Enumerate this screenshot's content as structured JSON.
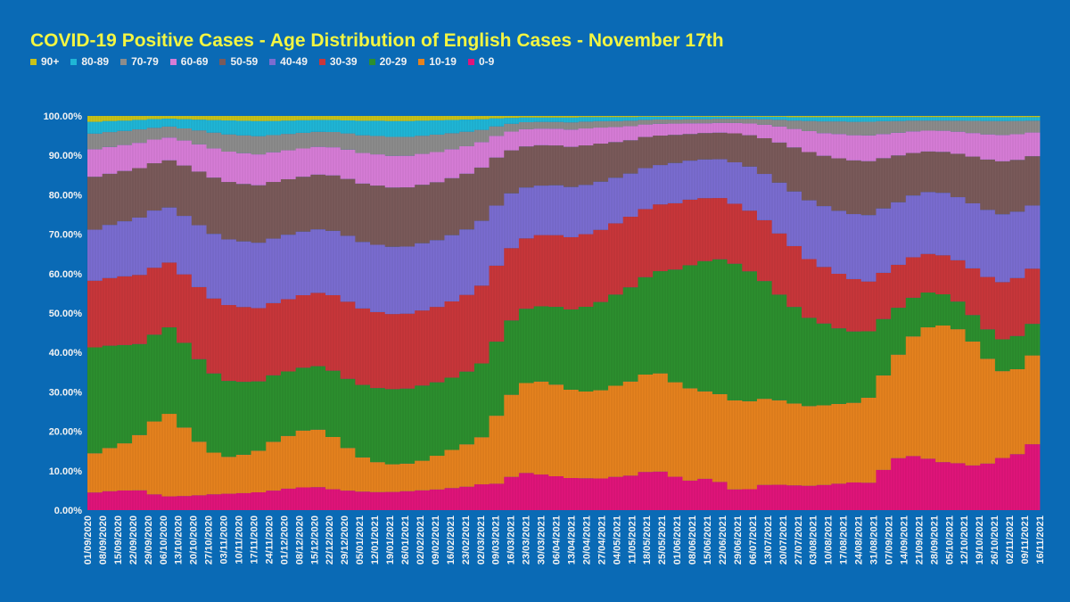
{
  "chart_data": {
    "type": "bar",
    "stacked": true,
    "normalized": true,
    "title": "COVID-19 Positive Cases - Age Distribution of English Cases - November 17th",
    "xlabel": "",
    "ylabel": "",
    "ylim": [
      0,
      100
    ],
    "y_ticks": [
      "0.00%",
      "10.00%",
      "20.00%",
      "30.00%",
      "40.00%",
      "50.00%",
      "60.00%",
      "70.00%",
      "80.00%",
      "90.00%",
      "100.00%"
    ],
    "x_ticks": [
      "01/09/2020",
      "08/09/2020",
      "15/09/2020",
      "22/09/2020",
      "29/09/2020",
      "06/10/2020",
      "13/10/2020",
      "20/10/2020",
      "27/10/2020",
      "03/11/2020",
      "10/11/2020",
      "17/11/2020",
      "24/11/2020",
      "01/12/2020",
      "08/12/2020",
      "15/12/2020",
      "22/12/2020",
      "29/12/2020",
      "05/01/2021",
      "12/01/2021",
      "19/01/2021",
      "26/01/2021",
      "02/02/2021",
      "09/02/2021",
      "16/02/2021",
      "23/02/2021",
      "02/03/2021",
      "09/03/2021",
      "16/03/2021",
      "23/03/2021",
      "30/03/2021",
      "06/04/2021",
      "13/04/2021",
      "20/04/2021",
      "27/04/2021",
      "04/05/2021",
      "11/05/2021",
      "18/05/2021",
      "25/05/2021",
      "01/06/2021",
      "08/06/2021",
      "15/06/2021",
      "22/06/2021",
      "29/06/2021",
      "06/07/2021",
      "13/07/2021",
      "20/07/2021",
      "27/07/2021",
      "03/08/2021",
      "10/08/2021",
      "17/08/2021",
      "24/08/2021",
      "31/08/2021",
      "07/09/2021",
      "14/09/2021",
      "21/09/2021",
      "28/09/2021",
      "05/10/2021",
      "12/10/2021",
      "19/10/2021",
      "26/10/2021",
      "02/11/2021",
      "09/11/2021",
      "16/11/2021"
    ],
    "legend_position": "top-left",
    "series": [
      {
        "name": "90+",
        "color": "#c8c21a",
        "values": [
          1.5,
          1.3,
          1.2,
          1.0,
          0.8,
          0.7,
          0.8,
          0.9,
          1.0,
          1.1,
          1.2,
          1.3,
          1.3,
          1.2,
          1.1,
          1.0,
          1.0,
          1.1,
          1.2,
          1.2,
          1.3,
          1.3,
          1.2,
          1.1,
          1.0,
          0.9,
          0.8,
          0.6,
          0.5,
          0.4,
          0.4,
          0.4,
          0.4,
          0.3,
          0.3,
          0.3,
          0.3,
          0.2,
          0.2,
          0.2,
          0.2,
          0.2,
          0.2,
          0.2,
          0.2,
          0.2,
          0.2,
          0.3,
          0.3,
          0.3,
          0.3,
          0.3,
          0.3,
          0.3,
          0.3,
          0.3,
          0.3,
          0.3,
          0.3,
          0.3,
          0.3,
          0.3,
          0.3,
          0.3
        ]
      },
      {
        "name": "80-89",
        "color": "#1fb6d6",
        "values": [
          3.0,
          2.8,
          2.6,
          2.4,
          2.2,
          2.0,
          2.3,
          2.6,
          3.0,
          3.4,
          3.6,
          3.8,
          3.6,
          3.4,
          3.2,
          3.0,
          3.0,
          3.2,
          3.6,
          3.8,
          4.0,
          4.0,
          3.8,
          3.6,
          3.3,
          3.0,
          2.6,
          2.0,
          1.5,
          1.2,
          1.1,
          1.1,
          1.2,
          1.1,
          1.0,
          1.0,
          0.9,
          0.8,
          0.7,
          0.7,
          0.6,
          0.6,
          0.5,
          0.5,
          0.5,
          0.6,
          0.7,
          0.8,
          0.9,
          1.0,
          1.0,
          1.1,
          1.1,
          1.0,
          1.0,
          0.9,
          0.9,
          0.9,
          0.9,
          0.9,
          0.9,
          0.9,
          0.9,
          0.9
        ]
      },
      {
        "name": "70-79",
        "color": "#8c8c8c",
        "values": [
          4.0,
          3.8,
          3.6,
          3.4,
          3.0,
          2.8,
          3.0,
          3.4,
          3.8,
          4.2,
          4.4,
          4.6,
          4.4,
          4.2,
          4.0,
          3.8,
          3.8,
          4.0,
          4.4,
          4.6,
          4.8,
          4.8,
          4.6,
          4.4,
          4.0,
          3.6,
          3.0,
          2.4,
          2.0,
          1.8,
          1.7,
          1.7,
          1.8,
          1.7,
          1.6,
          1.5,
          1.4,
          1.2,
          1.1,
          1.0,
          1.0,
          1.0,
          1.0,
          1.0,
          1.1,
          1.3,
          1.6,
          2.0,
          2.4,
          2.8,
          3.0,
          3.2,
          3.3,
          3.2,
          3.0,
          2.8,
          2.6,
          2.6,
          2.8,
          3.0,
          3.2,
          3.3,
          3.2,
          3.0
        ]
      },
      {
        "name": "60-69",
        "color": "#d67cd6",
        "values": [
          7.0,
          6.8,
          6.6,
          6.4,
          6.0,
          5.8,
          6.2,
          6.6,
          7.0,
          7.4,
          7.6,
          7.8,
          7.6,
          7.4,
          7.2,
          7.0,
          7.0,
          7.2,
          7.6,
          7.8,
          8.0,
          8.0,
          7.8,
          7.6,
          7.2,
          6.8,
          6.2,
          5.4,
          4.8,
          4.4,
          4.2,
          4.2,
          4.3,
          4.2,
          4.0,
          3.8,
          3.6,
          3.2,
          3.0,
          2.8,
          2.6,
          2.4,
          2.4,
          2.5,
          2.8,
          3.2,
          3.8,
          4.4,
          5.0,
          5.4,
          5.8,
          6.0,
          6.2,
          6.0,
          5.8,
          5.6,
          5.4,
          5.4,
          5.6,
          5.8,
          6.0,
          6.2,
          6.2,
          6.0
        ]
      },
      {
        "name": "50-59",
        "color": "#7a5a5a",
        "values": [
          13.5,
          13.0,
          12.8,
          12.5,
          12.0,
          12.0,
          12.5,
          13.0,
          13.5,
          14.0,
          14.2,
          14.5,
          14.5,
          14.2,
          14.0,
          13.8,
          13.8,
          14.0,
          14.5,
          14.8,
          15.0,
          15.0,
          14.8,
          14.6,
          14.2,
          13.8,
          13.0,
          12.0,
          11.0,
          10.5,
          10.2,
          10.0,
          10.0,
          9.8,
          9.5,
          9.0,
          8.5,
          8.0,
          7.5,
          7.0,
          6.5,
          6.5,
          6.5,
          7.0,
          7.5,
          8.5,
          9.5,
          10.5,
          11.5,
          12.0,
          12.5,
          12.8,
          13.0,
          12.5,
          12.0,
          11.0,
          10.5,
          10.5,
          11.0,
          11.5,
          12.0,
          12.5,
          12.5,
          12.5
        ]
      },
      {
        "name": "40-49",
        "color": "#7a6cd0",
        "values": [
          13.0,
          13.5,
          14.0,
          14.5,
          14.5,
          14.0,
          14.5,
          15.0,
          15.5,
          16.0,
          16.2,
          16.5,
          16.5,
          16.5,
          16.2,
          16.0,
          16.0,
          16.2,
          16.5,
          16.8,
          17.0,
          17.0,
          17.0,
          16.8,
          16.5,
          16.2,
          15.8,
          15.0,
          14.0,
          13.0,
          12.5,
          12.5,
          12.5,
          12.2,
          12.0,
          11.5,
          11.0,
          10.5,
          10.0,
          10.0,
          9.5,
          9.5,
          9.5,
          10.0,
          10.5,
          11.0,
          12.0,
          13.0,
          14.0,
          14.5,
          15.0,
          15.5,
          16.0,
          16.0,
          16.0,
          16.0,
          16.0,
          16.0,
          16.0,
          16.0,
          16.0,
          16.0,
          16.0,
          16.0
        ]
      },
      {
        "name": "30-39",
        "color": "#c8363a",
        "values": [
          17.0,
          17.2,
          17.5,
          17.5,
          17.0,
          16.5,
          17.0,
          17.5,
          18.0,
          18.5,
          18.5,
          18.5,
          18.5,
          18.5,
          18.5,
          18.5,
          18.8,
          19.0,
          19.0,
          19.0,
          19.0,
          19.0,
          19.0,
          19.0,
          19.0,
          19.0,
          19.0,
          19.0,
          18.5,
          18.0,
          18.0,
          18.0,
          18.0,
          18.0,
          18.0,
          18.0,
          18.0,
          17.5,
          17.0,
          16.5,
          16.0,
          15.5,
          15.0,
          14.5,
          14.5,
          14.5,
          14.5,
          14.5,
          14.0,
          13.5,
          13.0,
          12.5,
          12.0,
          11.5,
          11.0,
          10.5,
          10.0,
          10.0,
          10.5,
          11.5,
          12.5,
          13.5,
          14.0,
          14.0
        ]
      },
      {
        "name": "20-29",
        "color": "#2c8f2e",
        "values": [
          27.0,
          26.0,
          25.0,
          23.0,
          22.0,
          22.0,
          21.0,
          20.0,
          19.0,
          18.5,
          18.0,
          17.5,
          17.0,
          16.5,
          16.0,
          16.0,
          16.5,
          17.0,
          18.0,
          18.5,
          19.0,
          19.0,
          19.0,
          18.5,
          18.0,
          18.0,
          18.0,
          18.5,
          19.0,
          19.0,
          19.0,
          19.5,
          20.0,
          21.0,
          22.0,
          23.0,
          24.0,
          25.0,
          26.0,
          28.0,
          30.0,
          32.0,
          33.0,
          33.0,
          31.0,
          28.0,
          25.0,
          23.0,
          21.0,
          19.5,
          18.0,
          17.0,
          16.0,
          14.0,
          12.0,
          10.0,
          9.0,
          8.0,
          7.0,
          6.5,
          7.0,
          7.5,
          8.0,
          8.0
        ]
      },
      {
        "name": "10-19",
        "color": "#e5821e",
        "values": [
          10.0,
          11.0,
          12.0,
          14.0,
          18.5,
          21.0,
          17.0,
          13.0,
          10.0,
          9.0,
          9.5,
          10.5,
          12.5,
          13.5,
          14.5,
          14.5,
          13.0,
          10.5,
          8.5,
          7.5,
          7.0,
          7.0,
          7.5,
          8.5,
          9.5,
          10.5,
          11.5,
          17.0,
          21.0,
          23.0,
          23.5,
          23.0,
          22.0,
          21.5,
          22.0,
          23.0,
          24.0,
          25.0,
          25.0,
          23.5,
          22.5,
          21.5,
          21.5,
          21.5,
          21.0,
          20.5,
          20.0,
          19.5,
          19.0,
          19.0,
          19.0,
          19.0,
          20.5,
          23.5,
          26.5,
          31.0,
          34.0,
          35.0,
          34.0,
          30.5,
          25.0,
          20.5,
          20.5,
          22.5
        ]
      },
      {
        "name": "0-9",
        "color": "#e0147a",
        "values": [
          4.5,
          4.8,
          5.0,
          5.0,
          4.0,
          3.5,
          3.5,
          3.6,
          3.8,
          4.0,
          4.2,
          4.5,
          5.0,
          5.5,
          5.8,
          5.8,
          5.2,
          4.8,
          4.6,
          4.5,
          4.6,
          4.8,
          5.0,
          5.2,
          5.5,
          5.8,
          6.3,
          6.6,
          8.5,
          9.5,
          9.0,
          8.5,
          8.0,
          7.9,
          7.9,
          8.4,
          8.8,
          9.8,
          9.8,
          8.3,
          7.2,
          7.7,
          6.9,
          5.0,
          5.0,
          6.0,
          6.0,
          5.9,
          5.8,
          6.0,
          6.3,
          6.6,
          6.6,
          10.0,
          13.3,
          14.0,
          13.3,
          12.3,
          11.9,
          11.0,
          11.1,
          12.3,
          13.5,
          16.7
        ]
      }
    ]
  }
}
